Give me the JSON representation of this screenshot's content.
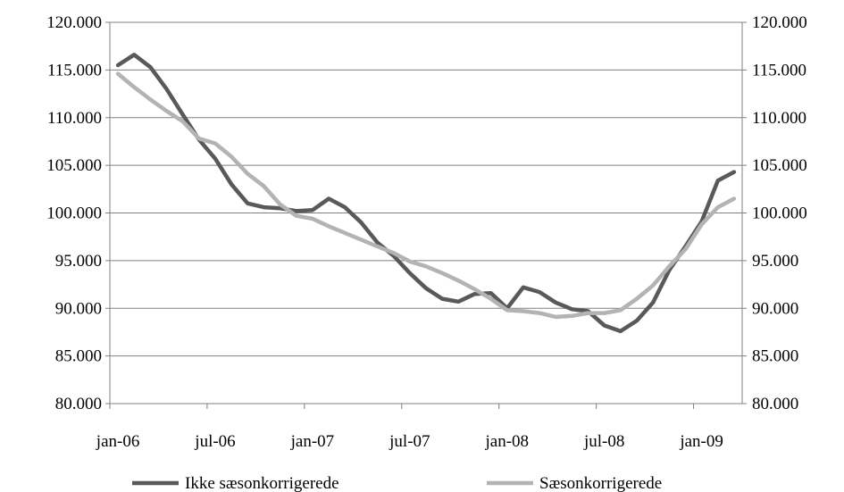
{
  "chart_data": {
    "type": "line",
    "title": "",
    "xlabel": "",
    "ylabel": "",
    "ylim": [
      80000,
      120000
    ],
    "y_ticks": [
      80000,
      85000,
      90000,
      95000,
      100000,
      105000,
      110000,
      115000,
      120000
    ],
    "y_tick_labels": [
      "80.000",
      "85.000",
      "90.000",
      "95.000",
      "100.000",
      "105.000",
      "110.000",
      "115.000",
      "120.000"
    ],
    "secondary_y_axis": true,
    "grid": "horizontal",
    "legend_position": "bottom",
    "x": [
      "jan-06",
      "feb-06",
      "mar-06",
      "apr-06",
      "maj-06",
      "jun-06",
      "jul-06",
      "aug-06",
      "sep-06",
      "okt-06",
      "nov-06",
      "dec-06",
      "jan-07",
      "feb-07",
      "mar-07",
      "apr-07",
      "maj-07",
      "jun-07",
      "jul-07",
      "aug-07",
      "sep-07",
      "okt-07",
      "nov-07",
      "dec-07",
      "jan-08",
      "feb-08",
      "mar-08",
      "apr-08",
      "maj-08",
      "jun-08",
      "jul-08",
      "aug-08",
      "sep-08",
      "okt-08",
      "nov-08",
      "dec-08",
      "jan-09",
      "feb-09",
      "mar-09"
    ],
    "x_tick_labels": [
      {
        "label": "jan-06",
        "index": 0
      },
      {
        "label": "jul-06",
        "index": 6
      },
      {
        "label": "jan-07",
        "index": 12
      },
      {
        "label": "jul-07",
        "index": 18
      },
      {
        "label": "jan-08",
        "index": 24
      },
      {
        "label": "jul-08",
        "index": 30
      },
      {
        "label": "jan-09",
        "index": 36
      }
    ],
    "series": [
      {
        "name": "Ikke sæsonkorrigerede",
        "color": "#595959",
        "values": [
          115500,
          116600,
          115300,
          113000,
          110300,
          107700,
          105700,
          103000,
          101000,
          100600,
          100500,
          100200,
          100300,
          101500,
          100600,
          99000,
          96900,
          95500,
          93700,
          92100,
          91000,
          90700,
          91500,
          91600,
          90000,
          92200,
          91700,
          90600,
          89900,
          89700,
          88200,
          87600,
          88700,
          90600,
          94000,
          96500,
          99100,
          103400,
          104300
        ]
      },
      {
        "name": "Sæsonkorrigerede",
        "color": "#b3b3b3",
        "values": [
          114600,
          113200,
          111900,
          110700,
          109600,
          107800,
          107300,
          105900,
          104100,
          102800,
          100900,
          99700,
          99400,
          98600,
          97900,
          97200,
          96500,
          95800,
          94900,
          94400,
          93700,
          92900,
          92000,
          91000,
          89800,
          89700,
          89500,
          89100,
          89200,
          89500,
          89500,
          89800,
          91000,
          92400,
          94400,
          96200,
          98800,
          100600,
          101500
        ]
      }
    ]
  }
}
